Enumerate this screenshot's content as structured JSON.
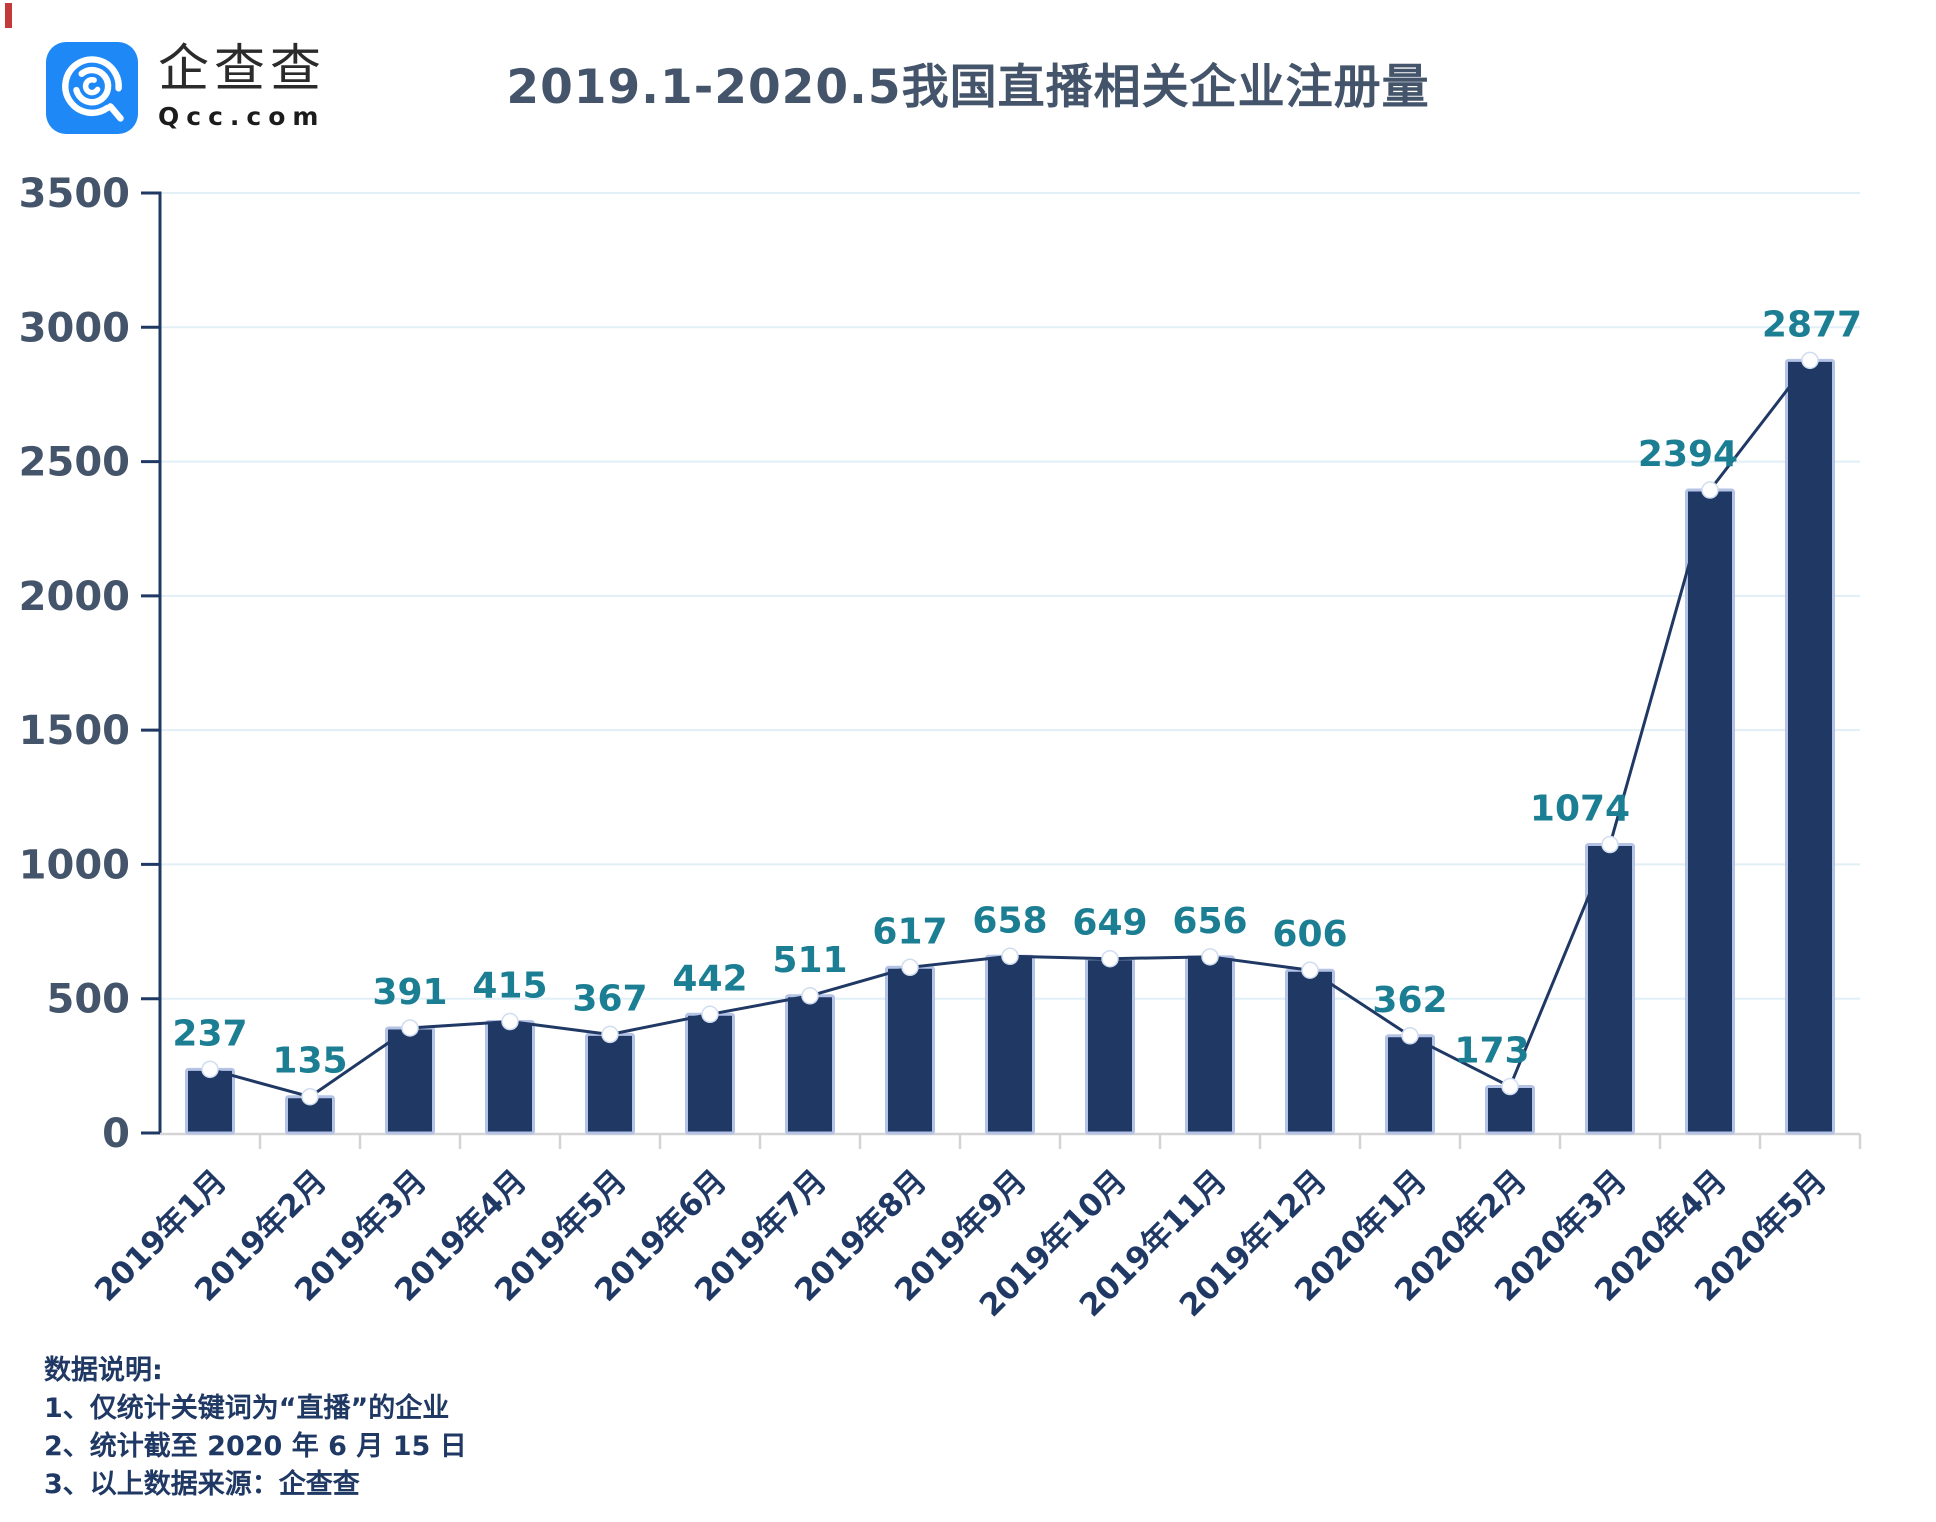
{
  "logo": {
    "name_cn": "企查查",
    "domain": "Qcc.com"
  },
  "header": {
    "title": "2019.1-2020.5我国直播相关企业注册量"
  },
  "chart_data": {
    "type": "bar+line",
    "title": "2019.1-2020.5我国直播相关企业注册量",
    "categories": [
      "2019年1月",
      "2019年2月",
      "2019年3月",
      "2019年4月",
      "2019年5月",
      "2019年6月",
      "2019年7月",
      "2019年8月",
      "2019年9月",
      "2019年10月",
      "2019年11月",
      "2019年12月",
      "2020年1月",
      "2020年2月",
      "2020年3月",
      "2020年4月",
      "2020年5月"
    ],
    "values": [
      237,
      135,
      391,
      415,
      367,
      442,
      511,
      617,
      658,
      649,
      656,
      606,
      362,
      173,
      1074,
      2394,
      2877
    ],
    "label_dx": [
      0,
      0,
      0,
      0,
      0,
      0,
      0,
      0,
      0,
      0,
      0,
      0,
      0,
      -18,
      -30,
      -22,
      2
    ],
    "xlabel": "",
    "ylabel": "",
    "ylim": [
      0,
      3500
    ],
    "yticks": [
      0,
      500,
      1000,
      1500,
      2000,
      2500,
      3000,
      3500
    ],
    "grid": true,
    "legend_position": "none",
    "colors": {
      "bar_fill": "#1f3864",
      "bar_stroke": "#b4c2e6",
      "line": "#1f3864",
      "marker_fill": "#ffffff",
      "marker_stroke": "#d0ddf0",
      "value_label": "#1b7e93",
      "axis": "#1f3864",
      "baseline": "#d4d4d4",
      "grid": "#e1f0f7",
      "ytick_label": "#44546a",
      "xtick_label": "#1f3864"
    }
  },
  "notes": {
    "heading": "数据说明:",
    "items": [
      "1、仅统计关键词为“直播”的企业",
      "2、统计截至 2020 年 6 月 15 日",
      "3、以上数据来源：企查查"
    ]
  }
}
